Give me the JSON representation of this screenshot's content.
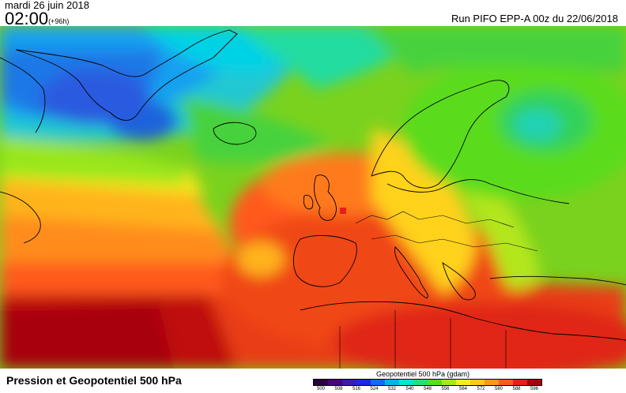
{
  "header": {
    "date": "mardi 26 juin 2018",
    "time": "02:00",
    "lead": "(+96h)",
    "run": "Run PIFO EPP-A 00z du 22/06/2018"
  },
  "map": {
    "title": "Pression et Geopotentiel 500 hPa",
    "region": "Europe / North Atlantic"
  },
  "legend": {
    "title": "Geopotentiel 500 hPa (gdam)",
    "ticks": [
      "500",
      "508",
      "516",
      "524",
      "532",
      "540",
      "548",
      "556",
      "564",
      "572",
      "580",
      "588",
      "596"
    ],
    "colors": [
      "#2a0040",
      "#4a0080",
      "#3c1ab4",
      "#1e28e6",
      "#0a6ef5",
      "#00b4f0",
      "#00e6d2",
      "#22e07a",
      "#5adc1e",
      "#a8e61e",
      "#f0f01e",
      "#ffc81e",
      "#ff961e",
      "#ff5a1e",
      "#e61e1e",
      "#a8000a"
    ]
  }
}
